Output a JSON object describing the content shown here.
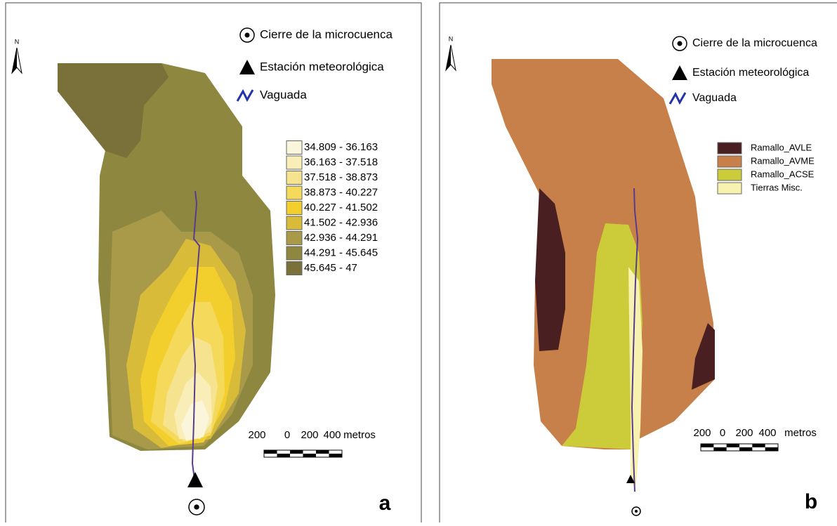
{
  "panels": [
    {
      "north": "N",
      "legend": [
        {
          "label": "Cierre de la microcuenca"
        },
        {
          "label": "Estación meteorológica"
        },
        {
          "label": "Vaguada"
        }
      ],
      "classes": [
        {
          "label": "34.809 - 36.163",
          "color": "#fbf5dc"
        },
        {
          "label": "36.163 - 37.518",
          "color": "#f9eeb8"
        },
        {
          "label": "37.518 - 38.873",
          "color": "#f6e38f"
        },
        {
          "label": "38.873 - 40.227",
          "color": "#f5d95a"
        },
        {
          "label": "40.227 - 41.502",
          "color": "#f3cf2d"
        },
        {
          "label": "41.502 - 42.936",
          "color": "#d9bb3a"
        },
        {
          "label": "42.936 - 44.291",
          "color": "#a99a4a"
        },
        {
          "label": "44.291 - 45.645",
          "color": "#8e8740"
        },
        {
          "label": "45.645 - 47",
          "color": "#7a703a"
        }
      ],
      "scale": [
        "200",
        "0",
        "200",
        "400",
        "metros"
      ],
      "letter": "a"
    },
    {
      "north": "N",
      "legend": [
        {
          "label": "Cierre de la microcuenca"
        },
        {
          "label": "Estación meteorológica"
        },
        {
          "label": "Vaguada"
        }
      ],
      "classes": [
        {
          "label": "Ramallo_AVLE",
          "color": "#4a1f22"
        },
        {
          "label": "Ramallo_AVME",
          "color": "#c8804a"
        },
        {
          "label": "Ramallo_ACSE",
          "color": "#cccc3a"
        },
        {
          "label": "Tierras Misc.",
          "color": "#f7f2b0"
        }
      ],
      "scale": [
        "200",
        "0",
        "200",
        "400",
        "metros"
      ],
      "letter": "b"
    }
  ]
}
